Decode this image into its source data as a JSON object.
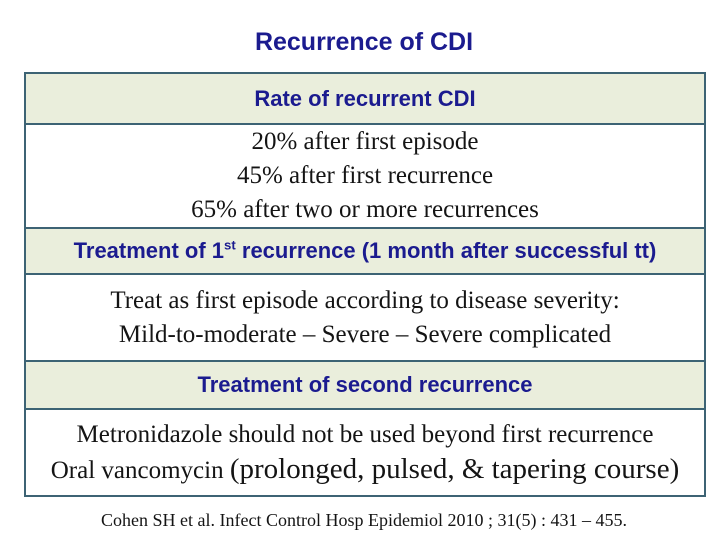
{
  "slide": {
    "title": "Recurrence of CDI",
    "citation": "Cohen SH et al. Infect Control Hosp Epidemiol 2010 ; 31(5) : 431 – 455."
  },
  "table": {
    "header_rate": {
      "label": "Rate of recurrent CDI"
    },
    "rates": {
      "line1": "20% after first episode",
      "line2": "45% after first recurrence",
      "line3": "65% after two or more recurrences"
    },
    "header_first_recurrence": {
      "prefix": "Treatment of 1",
      "superscript": "st",
      "suffix": " recurrence (1 month after successful tt)"
    },
    "treatment_first": {
      "line1": "Treat as first episode according to disease severity:",
      "line2": "Mild-to-moderate – Severe – Severe complicated"
    },
    "header_second_recurrence": {
      "label": "Treatment of second recurrence"
    },
    "treatment_second": {
      "line1": "Metronidazole should not be used beyond first recurrence",
      "line2_prefix": "Oral vancomycin ",
      "line2_paren": "(prolonged, pulsed, & tapering course)"
    }
  },
  "colors": {
    "title_navy": "#1b1b8f",
    "header_row_bg": "#eaeedc",
    "table_border": "#3d6374",
    "content_text": "#141414",
    "background": "#ffffff"
  }
}
